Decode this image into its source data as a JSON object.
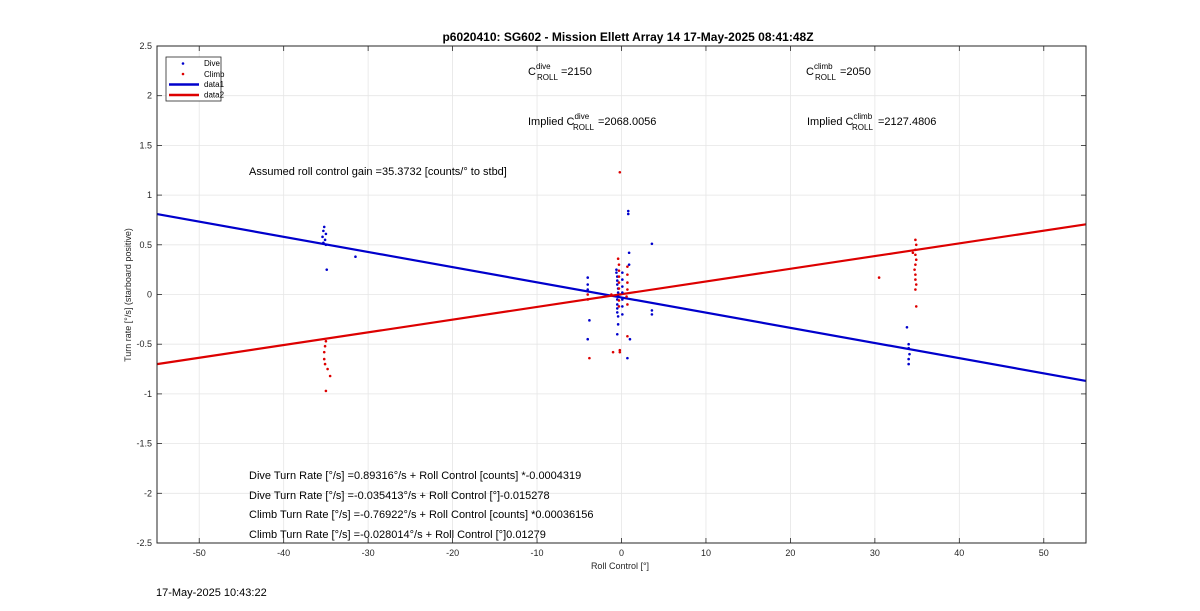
{
  "timestamp": "17-May-2025 10:43:22",
  "colors": {
    "dive": "#0000cc",
    "climb": "#dd0000",
    "grid": "#e6e6e6",
    "axis": "#262626"
  },
  "chart_data": {
    "type": "scatter",
    "title": "p6020410: SG602 - Mission Ellett Array 14 17-May-2025 08:41:48Z",
    "xlabel": "Roll Control [°]",
    "ylabel": "Turn rate [°/s] (starboard positive)",
    "xlim": [
      -55,
      55
    ],
    "ylim": [
      -2.5,
      2.5
    ],
    "xticks": [
      -50,
      -40,
      -30,
      -20,
      -10,
      0,
      10,
      20,
      30,
      40,
      50
    ],
    "yticks": [
      2.5,
      2,
      1.5,
      1,
      0.5,
      0,
      -0.5,
      -1,
      -1.5,
      -2,
      -2.5
    ],
    "xtick_labels": [
      "-50",
      "-40",
      "-30",
      "-20",
      "-10",
      "0",
      "10",
      "20",
      "30",
      "40",
      "50"
    ],
    "ytick_labels": [
      "2.5",
      "2",
      "1.5",
      "1",
      "0.5",
      "0",
      "-0.5",
      "-1",
      "-1.5",
      "-2",
      "-2.5"
    ],
    "grid": true,
    "legend_position": "top-left",
    "legend": [
      "Dive",
      "Climb",
      "data1",
      "data2"
    ],
    "series": [
      {
        "name": "Dive",
        "kind": "scatter",
        "color": "#0000cc",
        "points": [
          [
            -35.2,
            0.68
          ],
          [
            -35.3,
            0.64
          ],
          [
            -35.0,
            0.61
          ],
          [
            -35.4,
            0.58
          ],
          [
            -35.1,
            0.55
          ],
          [
            -35.3,
            0.52
          ],
          [
            -35.0,
            0.5
          ],
          [
            -34.9,
            0.25
          ],
          [
            -31.5,
            0.38
          ],
          [
            -4,
            0.17
          ],
          [
            -4,
            0.1
          ],
          [
            -4,
            0.05
          ],
          [
            -3.8,
            -0.26
          ],
          [
            -4,
            -0.45
          ],
          [
            -0.6,
            0.25
          ],
          [
            -0.6,
            0.22
          ],
          [
            -0.5,
            0.18
          ],
          [
            -0.5,
            0.14
          ],
          [
            -0.5,
            0.1
          ],
          [
            -0.4,
            0.06
          ],
          [
            -0.4,
            0.02
          ],
          [
            -0.4,
            -0.02
          ],
          [
            -0.5,
            -0.05
          ],
          [
            -0.5,
            -0.1
          ],
          [
            -0.5,
            -0.14
          ],
          [
            -0.5,
            -0.18
          ],
          [
            -0.4,
            -0.22
          ],
          [
            -0.4,
            -0.3
          ],
          [
            -0.5,
            -0.4
          ],
          [
            0.1,
            0.22
          ],
          [
            0.1,
            0.15
          ],
          [
            0.1,
            0.08
          ],
          [
            0.1,
            0.02
          ],
          [
            0.1,
            -0.05
          ],
          [
            0.1,
            -0.12
          ],
          [
            0.1,
            -0.2
          ],
          [
            0.8,
            0.84
          ],
          [
            0.8,
            0.81
          ],
          [
            0.9,
            0.42
          ],
          [
            0.9,
            0.3
          ],
          [
            1,
            -0.45
          ],
          [
            0.7,
            -0.64
          ],
          [
            3.6,
            0.51
          ],
          [
            3.6,
            -0.16
          ],
          [
            3.6,
            -0.2
          ],
          [
            33.8,
            -0.33
          ],
          [
            34,
            -0.5
          ],
          [
            34,
            -0.54
          ],
          [
            34.1,
            -0.6
          ],
          [
            34,
            -0.65
          ],
          [
            34,
            -0.7
          ]
        ]
      },
      {
        "name": "Climb",
        "kind": "scatter",
        "color": "#dd0000",
        "points": [
          [
            -35,
            -0.47
          ],
          [
            -35.1,
            -0.52
          ],
          [
            -35.2,
            -0.58
          ],
          [
            -35.2,
            -0.65
          ],
          [
            -35.1,
            -0.7
          ],
          [
            -34.8,
            -0.75
          ],
          [
            -34.5,
            -0.82
          ],
          [
            -35,
            -0.97
          ],
          [
            -4,
            0.0
          ],
          [
            -4,
            -0.05
          ],
          [
            -3.8,
            -0.64
          ],
          [
            -1.2,
            0.0
          ],
          [
            -1,
            -0.58
          ],
          [
            -0.2,
            1.23
          ],
          [
            -0.4,
            0.36
          ],
          [
            -0.3,
            0.3
          ],
          [
            -0.3,
            0.24
          ],
          [
            -0.3,
            0.18
          ],
          [
            -0.3,
            0.12
          ],
          [
            -0.3,
            0.06
          ],
          [
            -0.2,
            0.0
          ],
          [
            -0.3,
            -0.06
          ],
          [
            -0.3,
            -0.12
          ],
          [
            -0.2,
            -0.58
          ],
          [
            -0.2,
            -0.56
          ],
          [
            0.7,
            0.28
          ],
          [
            0.7,
            0.2
          ],
          [
            0.7,
            0.12
          ],
          [
            0.7,
            0.05
          ],
          [
            0.6,
            -0.02
          ],
          [
            0.7,
            -0.1
          ],
          [
            0.7,
            -0.42
          ],
          [
            30.5,
            0.17
          ],
          [
            34.8,
            0.55
          ],
          [
            34.9,
            0.5
          ],
          [
            34.8,
            0.45
          ],
          [
            34.8,
            0.4
          ],
          [
            34.9,
            0.35
          ],
          [
            34.8,
            0.3
          ],
          [
            34.7,
            0.25
          ],
          [
            34.8,
            0.2
          ],
          [
            34.8,
            0.15
          ],
          [
            34.9,
            0.1
          ],
          [
            34.8,
            0.05
          ],
          [
            34.5,
            0.42
          ],
          [
            34.9,
            -0.12
          ]
        ]
      },
      {
        "name": "data1",
        "kind": "line",
        "color": "#0000cc",
        "x": [
          -55,
          55
        ],
        "y": [
          0.8093,
          -0.8693
        ]
      },
      {
        "name": "data2",
        "kind": "line",
        "color": "#dd0000",
        "x": [
          -55,
          55
        ],
        "y": [
          -0.7007,
          0.7063
        ]
      }
    ],
    "annotations": {
      "c_dive_label": "C",
      "c_dive_sup": "dive",
      "c_dive_sub": "ROLL",
      "c_dive_value": "=2150",
      "c_climb_label": "C",
      "c_climb_sup": "climb",
      "c_climb_sub": "ROLL",
      "c_climb_value": "=2050",
      "impl_dive_prefix": "Implied C",
      "impl_dive_sup": "dive",
      "impl_dive_sub": "ROLL",
      "impl_dive_value": "=2068.0056",
      "impl_climb_prefix": "Implied C",
      "impl_climb_sup": "climb",
      "impl_climb_sub": "ROLL",
      "impl_climb_value": "=2127.4806",
      "gain": "Assumed roll control gain =35.3732 [counts/° to stbd]",
      "eq1": "Dive Turn Rate [°/s] =0.89316°/s + Roll Control [counts] *-0.0004319",
      "eq2": "Dive Turn Rate [°/s] =-0.035413°/s + Roll Control [°]-0.015278",
      "eq3": "Climb Turn Rate [°/s] =-0.76922°/s + Roll Control [counts] *0.00036156",
      "eq4": "Climb Turn Rate [°/s] =-0.028014°/s + Roll Control [°]0.01279"
    }
  }
}
